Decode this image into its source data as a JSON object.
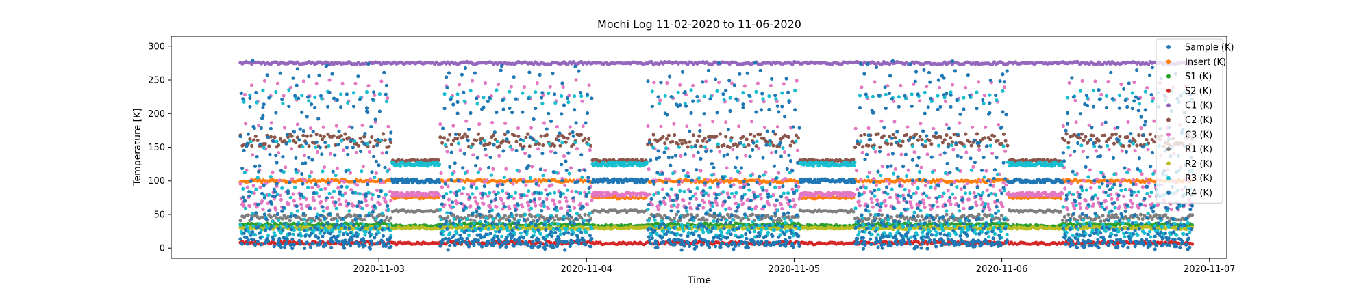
{
  "chart_data": {
    "type": "scatter",
    "title": "Mochi Log 11-02-2020 to 11-06-2020",
    "xlabel": "Time",
    "ylabel": "Temperature [K]",
    "xlim": [
      "2020-11-02 00:00",
      "2020-11-07 02:00"
    ],
    "ylim": [
      -15,
      315
    ],
    "x_ticks": [
      "2020-11-03",
      "2020-11-04",
      "2020-11-05",
      "2020-11-06",
      "2020-11-07"
    ],
    "y_ticks": [
      0,
      50,
      100,
      150,
      200,
      250,
      300
    ],
    "grid": false,
    "legend_position": "top-right",
    "data_range": [
      "2020-11-02 08:00",
      "2020-11-06 22:00"
    ],
    "idle_periods": [
      [
        "2020-11-03 01:30",
        "2020-11-03 07:00"
      ],
      [
        "2020-11-04 00:40",
        "2020-11-04 07:00"
      ],
      [
        "2020-11-05 00:40",
        "2020-11-05 07:00"
      ],
      [
        "2020-11-06 00:40",
        "2020-11-06 07:00"
      ]
    ],
    "series": [
      {
        "name": "Sample (K)",
        "color": "#1f77b4",
        "behavior": "cycle",
        "low": 2,
        "high": 280
      },
      {
        "name": "Insert (K)",
        "color": "#ff7f0e",
        "behavior": "band",
        "value": 100,
        "idle_value": 75
      },
      {
        "name": "S1 (K)",
        "color": "#2ca02c",
        "behavior": "band",
        "value": 35,
        "idle_value": 33
      },
      {
        "name": "S2 (K)",
        "color": "#d62728",
        "behavior": "band",
        "value": 8,
        "idle_value": 7
      },
      {
        "name": "C1 (K)",
        "color": "#9467bd",
        "behavior": "band",
        "value": 275,
        "idle_value": 275
      },
      {
        "name": "C2 (K)",
        "color": "#8c564b",
        "behavior": "band",
        "value": 160,
        "idle_value": 130
      },
      {
        "name": "C3 (K)",
        "color": "#e377c2",
        "behavior": "cycle",
        "low": 60,
        "high": 285,
        "idle_value": 80
      },
      {
        "name": "R1 (K)",
        "color": "#7f7f7f",
        "behavior": "band",
        "value": 45,
        "idle_value": 55
      },
      {
        "name": "R2 (K)",
        "color": "#bcbd22",
        "behavior": "band",
        "value": 30,
        "idle_value": 30
      },
      {
        "name": "R3 (K)",
        "color": "#17becf",
        "behavior": "cycle",
        "low": 20,
        "high": 280,
        "idle_value": 125
      },
      {
        "name": "R4 (K)",
        "color": "#1f77b4",
        "behavior": "cycle",
        "low": 5,
        "high": 270,
        "idle_value": 100
      }
    ]
  }
}
